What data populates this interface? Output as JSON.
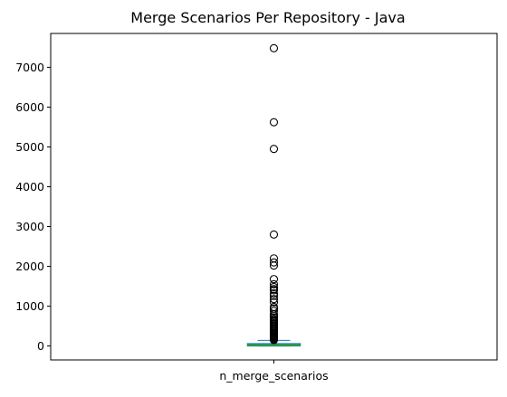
{
  "chart_data": {
    "type": "box",
    "title": "Merge Scenarios Per Repository - Java",
    "xlabel": "",
    "ylabel": "",
    "categories": [
      "n_merge_scenarios"
    ],
    "ylim": [
      -350,
      7850
    ],
    "yticks": [
      0,
      1000,
      2000,
      3000,
      4000,
      5000,
      6000,
      7000
    ],
    "ytick_labels": [
      "0",
      "1000",
      "2000",
      "3000",
      "4000",
      "5000",
      "6000",
      "7000"
    ],
    "grid": false,
    "legend": "none",
    "box": {
      "whisker_low": 0,
      "q1": 5,
      "median": 20,
      "q3": 55,
      "whisker_high": 140
    },
    "outliers": [
      7480,
      5620,
      4950,
      2800,
      2200,
      2100,
      2020,
      1680,
      1550,
      1480,
      1430,
      1400,
      1320,
      1260,
      1180,
      1100,
      980,
      940,
      880,
      800,
      760,
      720,
      680,
      650,
      620,
      590,
      560,
      530,
      500,
      470,
      440,
      410,
      380,
      350,
      320,
      300,
      280,
      260,
      240,
      220,
      200,
      180,
      160,
      150
    ],
    "colors": {
      "box": "#1f77b4",
      "median": "#2ca02c",
      "whisker": "#1f77b4",
      "outlier": "#000000",
      "axes": "#000000"
    }
  }
}
